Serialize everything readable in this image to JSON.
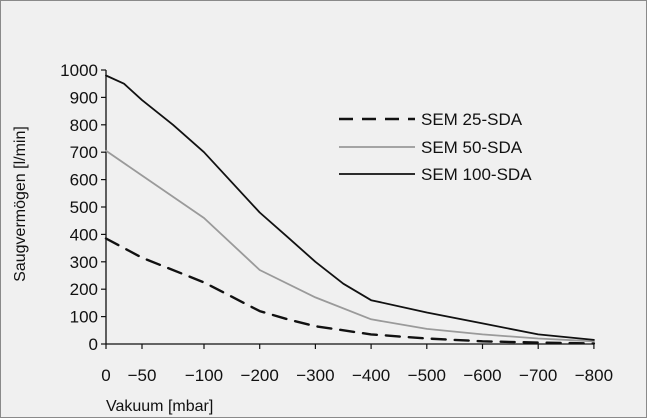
{
  "chart_data": {
    "type": "line",
    "title": "",
    "xlabel": "Vakuum [mbar]",
    "ylabel": "Saugvermögen [l/min]",
    "xlim": [
      0,
      -800
    ],
    "ylim": [
      0,
      1000
    ],
    "x_ticks": [
      "0",
      "−50",
      "−100",
      "−200",
      "−300",
      "−400",
      "−500",
      "−600",
      "−700",
      "−800"
    ],
    "y_ticks": [
      "1000",
      "900",
      "800",
      "700",
      "600",
      "500",
      "400",
      "300",
      "200",
      "100",
      "0"
    ],
    "grid": false,
    "legend_position": "top-right",
    "series": [
      {
        "name": "SEM 25-SDA",
        "style": "dashed",
        "color": "#111111",
        "points": [
          [
            0,
            385
          ],
          [
            -50,
            315
          ],
          [
            -100,
            225
          ],
          [
            -200,
            120
          ],
          [
            -250,
            90
          ],
          [
            -300,
            65
          ],
          [
            -400,
            35
          ],
          [
            -500,
            20
          ],
          [
            -600,
            10
          ],
          [
            -700,
            5
          ],
          [
            -800,
            2
          ]
        ]
      },
      {
        "name": "SEM 50-SDA",
        "style": "solid",
        "color": "#9a9a9a",
        "points": [
          [
            0,
            705
          ],
          [
            -50,
            615
          ],
          [
            -100,
            460
          ],
          [
            -200,
            270
          ],
          [
            -300,
            170
          ],
          [
            -400,
            90
          ],
          [
            -500,
            55
          ],
          [
            -600,
            35
          ],
          [
            -700,
            20
          ],
          [
            -800,
            10
          ]
        ]
      },
      {
        "name": "SEM 100-SDA",
        "style": "solid",
        "color": "#111111",
        "points": [
          [
            0,
            980
          ],
          [
            -25,
            950
          ],
          [
            -50,
            890
          ],
          [
            -75,
            800
          ],
          [
            -100,
            700
          ],
          [
            -200,
            480
          ],
          [
            -250,
            390
          ],
          [
            -300,
            300
          ],
          [
            -350,
            220
          ],
          [
            -400,
            160
          ],
          [
            -500,
            115
          ],
          [
            -600,
            75
          ],
          [
            -700,
            35
          ],
          [
            -800,
            15
          ]
        ]
      }
    ]
  }
}
